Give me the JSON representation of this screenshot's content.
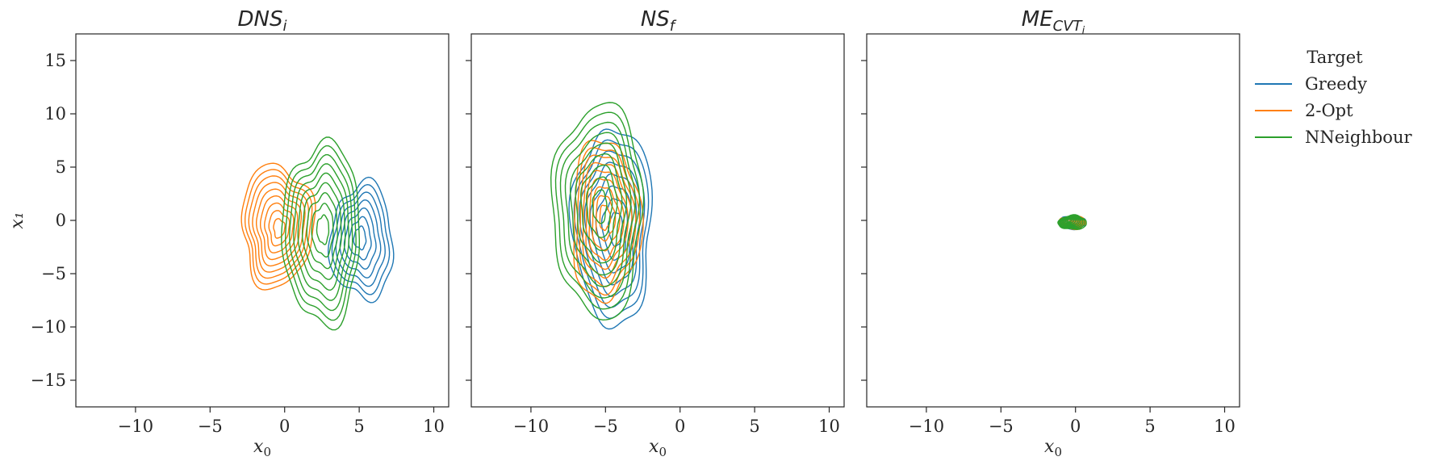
{
  "chart_data": {
    "type": "kde_contour",
    "legend": {
      "title": "Target",
      "placement": "right",
      "entries": [
        {
          "name": "Greedy",
          "color": "#1f77b4"
        },
        {
          "name": "2-Opt",
          "color": "#ff7f0e"
        },
        {
          "name": "NNeighbour",
          "color": "#2ca02c"
        }
      ]
    },
    "shared_ylabel": "x₁",
    "xlim": [
      -14,
      11
    ],
    "ylim": [
      -17.5,
      17.5
    ],
    "xticks": [
      -10,
      -5,
      0,
      5,
      10
    ],
    "yticks": [
      -15,
      -10,
      -5,
      0,
      5,
      10,
      15
    ],
    "xtick_labels": [
      "−10",
      "−5",
      "0",
      "5",
      "10"
    ],
    "ytick_labels": [
      "−15",
      "−10",
      "−5",
      "0",
      "5",
      "10",
      "15"
    ],
    "panels": [
      {
        "title_base": "DNS",
        "title_sub": "i",
        "xlabel_base": "x",
        "xlabel_sub": "0",
        "distributions": [
          {
            "name": "Greedy",
            "center": [
              5.2,
              -2.0
            ],
            "spread": [
              4.2,
              10.8
            ],
            "levels": 7
          },
          {
            "name": "2-Opt",
            "center": [
              -0.5,
              -0.5
            ],
            "spread": [
              4.8,
              11.5
            ],
            "levels": 9
          },
          {
            "name": "NNeighbour",
            "center": [
              2.5,
              -1.2
            ],
            "spread": [
              5.2,
              17.0
            ],
            "levels": 9
          }
        ]
      },
      {
        "title_base": "NS",
        "title_sub": "f",
        "xlabel_base": "x",
        "xlabel_sub": "0",
        "distributions": [
          {
            "name": "Greedy",
            "center": [
              -4.5,
              -0.5
            ],
            "spread": [
              5.3,
              18.5
            ],
            "levels": 8
          },
          {
            "name": "2-Opt",
            "center": [
              -5.0,
              0.0
            ],
            "spread": [
              4.6,
              15.0
            ],
            "levels": 9
          },
          {
            "name": "NNeighbour",
            "center": [
              -5.5,
              1.0
            ],
            "spread": [
              6.0,
              20.0
            ],
            "levels": 9
          }
        ]
      },
      {
        "title_base": "ME",
        "title_sub": "CVT",
        "title_subsub": "i",
        "xlabel_base": "x",
        "xlabel_sub": "0",
        "distributions": [
          {
            "name": "Greedy",
            "center": [
              -0.2,
              -0.2
            ],
            "spread": [
              1.8,
              1.2
            ],
            "levels": 8
          },
          {
            "name": "2-Opt",
            "center": [
              -0.2,
              -0.2
            ],
            "spread": [
              1.8,
              1.2
            ],
            "levels": 8
          },
          {
            "name": "NNeighbour",
            "center": [
              -0.2,
              -0.2
            ],
            "spread": [
              1.9,
              1.3
            ],
            "levels": 9
          }
        ]
      }
    ]
  }
}
